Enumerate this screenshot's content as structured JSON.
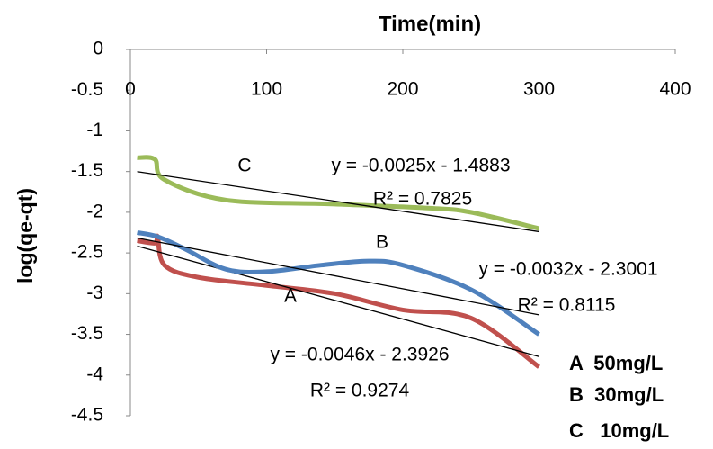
{
  "chart_data": {
    "type": "line",
    "title": "Time(min)",
    "y_label": "log(qe-qt)",
    "xlim": [
      0,
      400
    ],
    "xticks": [
      0,
      100,
      200,
      300,
      400
    ],
    "ylim": [
      -4.5,
      0
    ],
    "yticks": [
      0,
      -0.5,
      -1,
      -1.5,
      -2,
      -2.5,
      -3,
      -3.5,
      -4,
      -4.5
    ],
    "grid": false,
    "legend": "bottom-right",
    "series": [
      {
        "name": "A  50mg/L",
        "label": "A",
        "color": "#c0504d",
        "x": [
          5,
          18,
          20,
          25,
          50,
          100,
          150,
          200,
          250,
          300
        ],
        "values": [
          -2.35,
          -2.38,
          -2.3,
          -2.65,
          -2.8,
          -2.9,
          -3.0,
          -3.2,
          -3.3,
          -3.9
        ],
        "trendline": {
          "slope": -0.0046,
          "intercept": -2.3926,
          "equation": "y = -0.0046x - 2.3926",
          "r2": "R² = 0.9274"
        }
      },
      {
        "name": "B  30mg/L",
        "label": "B",
        "color": "#4f81bd",
        "x": [
          5,
          20,
          40,
          70,
          100,
          140,
          175,
          200,
          250,
          300
        ],
        "values": [
          -2.25,
          -2.3,
          -2.45,
          -2.7,
          -2.73,
          -2.65,
          -2.6,
          -2.65,
          -2.95,
          -3.5
        ],
        "trendline": {
          "slope": -0.0032,
          "intercept": -2.3001,
          "equation": "y = -0.0032x - 2.3001",
          "r2": "R² = 0.8115"
        }
      },
      {
        "name": "C   10mg/L",
        "label": "C",
        "color": "#9bbb59",
        "x": [
          5,
          18,
          25,
          70,
          150,
          220,
          250,
          300
        ],
        "values": [
          -1.33,
          -1.35,
          -1.6,
          -1.85,
          -1.9,
          -1.95,
          -2.0,
          -2.2
        ],
        "trendline": {
          "slope": -0.0025,
          "intercept": -1.4883,
          "equation": "y = -0.0025x - 1.4883",
          "r2": "R² = 0.7825"
        }
      }
    ]
  }
}
